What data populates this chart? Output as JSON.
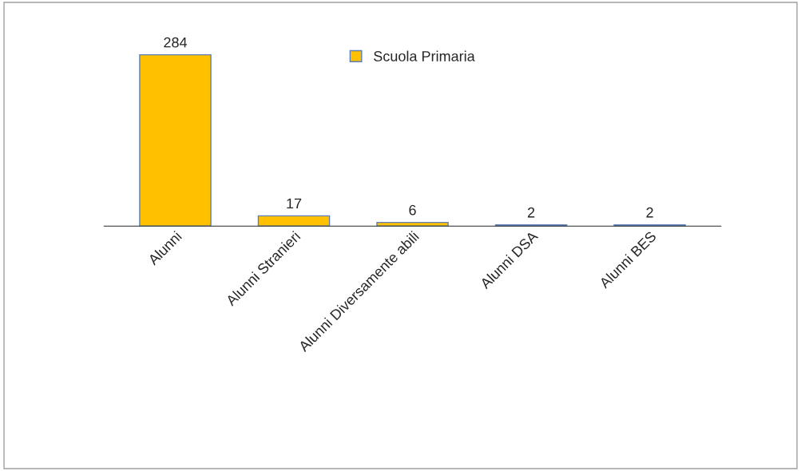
{
  "chart_data": {
    "type": "bar",
    "categories": [
      "Alunni",
      "Alunni Stranieri",
      "Alunni Diversamente abili",
      "Alunni DSA",
      "Alunni BES"
    ],
    "series": [
      {
        "name": "Scuola Primaria",
        "color": "#ffc000",
        "values": [
          284,
          17,
          6,
          2,
          2
        ]
      }
    ],
    "data_labels": true,
    "legend": "top",
    "grid": false
  }
}
